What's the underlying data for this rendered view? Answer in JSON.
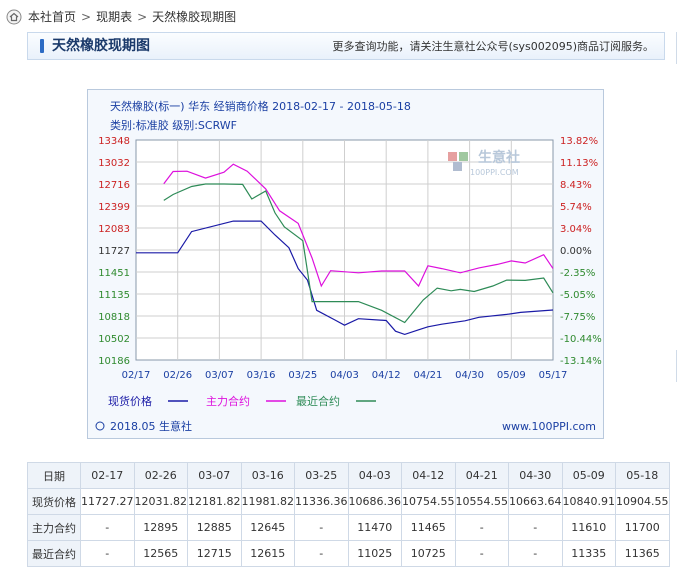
{
  "breadcrumb": {
    "home": "本社首页",
    "sep": ">",
    "table": "现期表",
    "page": "天然橡胶现期图"
  },
  "header": {
    "title": "天然橡胶现期图",
    "notice": "更多查询功能，请关注生意社公众号(sys002095)商品订阅服务。"
  },
  "chart_data": {
    "type": "line",
    "title": "天然橡胶(标一) 华东 经销商价格 2018-02-17 - 2018-05-18",
    "subtitle": "类别:标准胶 级别:SCRWF",
    "watermark": {
      "brand": "生意社",
      "url": "100PPI.COM"
    },
    "x_ticks": [
      "02/17",
      "02/26",
      "03/07",
      "03/16",
      "03/25",
      "04/03",
      "04/12",
      "04/21",
      "04/30",
      "05/09",
      "05/17"
    ],
    "y_left_ticks": [
      "13348",
      "13032",
      "12716",
      "12399",
      "12083",
      "11727",
      "11451",
      "11135",
      "10818",
      "10502",
      "10186"
    ],
    "y_right_ticks": [
      "13.82%",
      "11.13%",
      "8.43%",
      "5.74%",
      "3.04%",
      "0.00%",
      "-2.35%",
      "-5.05%",
      "-7.75%",
      "-10.44%",
      "-13.14%"
    ],
    "ylim": [
      10186,
      13348
    ],
    "x_count": 91,
    "series": [
      {
        "name": "现货价格",
        "color": "#1a1aa6",
        "points": [
          [
            0,
            11727
          ],
          [
            9,
            11727
          ],
          [
            12,
            12032
          ],
          [
            21,
            12182
          ],
          [
            27,
            12182
          ],
          [
            30,
            11982
          ],
          [
            33,
            11800
          ],
          [
            35,
            11500
          ],
          [
            37,
            11336
          ],
          [
            39,
            10900
          ],
          [
            43,
            10760
          ],
          [
            45,
            10686
          ],
          [
            48,
            10780
          ],
          [
            54,
            10754
          ],
          [
            56,
            10600
          ],
          [
            58,
            10554
          ],
          [
            61,
            10620
          ],
          [
            63,
            10663
          ],
          [
            66,
            10700
          ],
          [
            71,
            10750
          ],
          [
            74,
            10800
          ],
          [
            80,
            10841
          ],
          [
            83,
            10870
          ],
          [
            90,
            10905
          ]
        ]
      },
      {
        "name": "主力合约",
        "color": "#dd10dd",
        "points": [
          [
            6,
            12720
          ],
          [
            8,
            12895
          ],
          [
            11,
            12900
          ],
          [
            15,
            12800
          ],
          [
            19,
            12885
          ],
          [
            21,
            13000
          ],
          [
            24,
            12900
          ],
          [
            28,
            12645
          ],
          [
            31,
            12330
          ],
          [
            35,
            12150
          ],
          [
            38,
            11650
          ],
          [
            40,
            11250
          ],
          [
            42,
            11470
          ],
          [
            48,
            11440
          ],
          [
            53,
            11465
          ],
          [
            58,
            11465
          ],
          [
            61,
            11250
          ],
          [
            63,
            11540
          ],
          [
            66,
            11500
          ],
          [
            70,
            11440
          ],
          [
            74,
            11510
          ],
          [
            78,
            11560
          ],
          [
            81,
            11610
          ],
          [
            84,
            11580
          ],
          [
            88,
            11700
          ],
          [
            90,
            11500
          ]
        ]
      },
      {
        "name": "最近合约",
        "color": "#2e8b57",
        "points": [
          [
            6,
            12480
          ],
          [
            8,
            12565
          ],
          [
            12,
            12680
          ],
          [
            15,
            12715
          ],
          [
            19,
            12715
          ],
          [
            23,
            12710
          ],
          [
            25,
            12500
          ],
          [
            28,
            12615
          ],
          [
            30,
            12300
          ],
          [
            32,
            12100
          ],
          [
            36,
            11900
          ],
          [
            38,
            11025
          ],
          [
            48,
            11025
          ],
          [
            53,
            10900
          ],
          [
            58,
            10725
          ],
          [
            62,
            11050
          ],
          [
            65,
            11220
          ],
          [
            68,
            11180
          ],
          [
            70,
            11200
          ],
          [
            73,
            11170
          ],
          [
            77,
            11250
          ],
          [
            80,
            11335
          ],
          [
            84,
            11330
          ],
          [
            88,
            11365
          ],
          [
            90,
            11150
          ]
        ]
      }
    ],
    "legend": [
      {
        "label": "现货价格",
        "color": "#1a1aa6"
      },
      {
        "label": "主力合约",
        "color": "#dd10dd"
      },
      {
        "label": "最近合约",
        "color": "#2e8b57"
      }
    ],
    "footer_left": "2018.05 生意社",
    "footer_right": "www.100PPI.com"
  },
  "table": {
    "header": [
      "日期",
      "02-17",
      "02-26",
      "03-07",
      "03-16",
      "03-25",
      "04-03",
      "04-12",
      "04-21",
      "04-30",
      "05-09",
      "05-18"
    ],
    "rows": [
      [
        "现货价格",
        "11727.27",
        "12031.82",
        "12181.82",
        "11981.82",
        "11336.36",
        "10686.36",
        "10754.55",
        "10554.55",
        "10663.64",
        "10840.91",
        "10904.55"
      ],
      [
        "主力合约",
        "-",
        "12895",
        "12885",
        "12645",
        "-",
        "11470",
        "11465",
        "-",
        "-",
        "11610",
        "11700"
      ],
      [
        "最近合约",
        "-",
        "12565",
        "12715",
        "12615",
        "-",
        "11025",
        "10725",
        "-",
        "-",
        "11335",
        "11365"
      ]
    ]
  }
}
